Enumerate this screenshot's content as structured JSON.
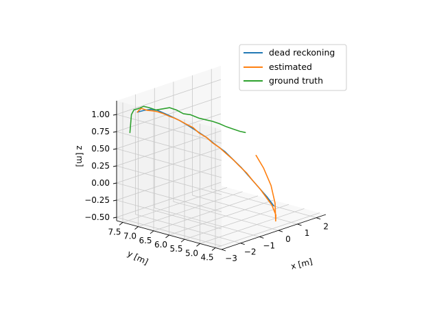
{
  "chart_data": {
    "type": "line",
    "projection": "3d",
    "title": "",
    "xlabel": "x [m]",
    "ylabel": "y [m]",
    "zlabel": "z [m]",
    "xlim": [
      -3,
      2.5
    ],
    "ylim": [
      4.3,
      7.7
    ],
    "zlim": [
      -0.55,
      1.2
    ],
    "x_ticks": [
      -3,
      -2,
      -1,
      0,
      1,
      2
    ],
    "x_tick_labels": [
      "−3",
      "−2",
      "−1",
      "0",
      "1",
      "2"
    ],
    "y_ticks": [
      7.5,
      7.0,
      6.5,
      6.0,
      5.5,
      5.0,
      4.5
    ],
    "y_tick_labels": [
      "7.5",
      "7.0",
      "6.5",
      "6.0",
      "5.5",
      "5.0",
      "4.5"
    ],
    "z_ticks": [
      1.0,
      0.75,
      0.5,
      0.25,
      0.0,
      -0.25,
      -0.5
    ],
    "z_tick_labels": [
      "1.00",
      "0.75",
      "0.50",
      "0.25",
      "0.00",
      "−0.25",
      "−0.50"
    ],
    "grid": true,
    "legend_position": "top-right",
    "series": [
      {
        "name": "dead reckoning",
        "color": "#1f77b4",
        "points": [
          [
            -2.72,
            7.2,
            1.07
          ],
          [
            -2.54,
            7.1,
            1.09
          ],
          [
            -2.35,
            7.0,
            1.1
          ],
          [
            -2.15,
            6.9,
            1.08
          ],
          [
            -1.95,
            6.8,
            1.03
          ],
          [
            -1.75,
            6.7,
            0.98
          ],
          [
            -1.55,
            6.55,
            0.92
          ],
          [
            -1.36,
            6.4,
            0.85
          ],
          [
            -1.15,
            6.25,
            0.77
          ],
          [
            -0.95,
            6.05,
            0.68
          ],
          [
            -0.75,
            5.9,
            0.58
          ],
          [
            -0.55,
            5.7,
            0.48
          ],
          [
            -0.35,
            5.55,
            0.36
          ],
          [
            -0.15,
            5.4,
            0.24
          ],
          [
            0.05,
            5.25,
            0.1
          ],
          [
            0.25,
            5.1,
            -0.04
          ],
          [
            0.45,
            4.95,
            -0.18
          ],
          [
            0.65,
            4.85,
            -0.32
          ]
        ]
      },
      {
        "name": "estimated",
        "color": "#ff7f0e",
        "points": [
          [
            -2.72,
            7.2,
            1.07
          ],
          [
            -2.6,
            7.15,
            1.12
          ],
          [
            -2.45,
            7.05,
            1.09
          ],
          [
            -2.3,
            6.95,
            1.08
          ],
          [
            -2.15,
            6.9,
            1.06
          ],
          [
            -2.0,
            6.8,
            1.03
          ],
          [
            -1.85,
            6.7,
            0.99
          ],
          [
            -1.7,
            6.65,
            0.96
          ],
          [
            -1.55,
            6.55,
            0.92
          ],
          [
            -1.4,
            6.45,
            0.87
          ],
          [
            -1.25,
            6.3,
            0.82
          ],
          [
            -1.1,
            6.2,
            0.74
          ],
          [
            -0.95,
            6.05,
            0.68
          ],
          [
            -0.8,
            5.95,
            0.6
          ],
          [
            -0.65,
            5.8,
            0.53
          ],
          [
            -0.5,
            5.7,
            0.45
          ],
          [
            -0.35,
            5.55,
            0.36
          ],
          [
            -0.2,
            5.45,
            0.27
          ],
          [
            -0.05,
            5.3,
            0.17
          ],
          [
            0.1,
            5.2,
            0.06
          ],
          [
            0.25,
            5.05,
            -0.06
          ],
          [
            0.4,
            4.95,
            -0.18
          ],
          [
            0.55,
            4.85,
            -0.3
          ],
          [
            0.68,
            4.8,
            -0.45
          ],
          [
            0.75,
            4.85,
            -0.55
          ],
          [
            0.8,
            4.9,
            -0.3
          ],
          [
            0.75,
            5.0,
            -0.05
          ],
          [
            0.6,
            5.15,
            0.2
          ],
          [
            0.45,
            5.3,
            0.38
          ]
        ]
      },
      {
        "name": "ground truth",
        "color": "#2ca02c",
        "points": [
          [
            -2.95,
            7.3,
            0.78
          ],
          [
            -2.95,
            7.25,
            1.05
          ],
          [
            -2.9,
            7.2,
            1.12
          ],
          [
            -2.75,
            7.15,
            1.13
          ],
          [
            -2.55,
            7.1,
            1.15
          ],
          [
            -2.35,
            7.05,
            1.12
          ],
          [
            -2.15,
            6.95,
            1.08
          ],
          [
            -1.95,
            6.85,
            1.09
          ],
          [
            -1.75,
            6.75,
            1.1
          ],
          [
            -1.55,
            6.65,
            1.06
          ],
          [
            -1.35,
            6.55,
            1.0
          ],
          [
            -1.15,
            6.45,
            0.98
          ],
          [
            -0.95,
            6.3,
            0.93
          ],
          [
            -0.75,
            6.2,
            0.9
          ],
          [
            -0.55,
            6.1,
            0.87
          ],
          [
            -0.35,
            6.0,
            0.83
          ],
          [
            -0.15,
            5.9,
            0.78
          ],
          [
            0.05,
            5.8,
            0.74
          ],
          [
            0.25,
            5.7,
            0.7
          ],
          [
            0.45,
            5.65,
            0.67
          ]
        ]
      }
    ]
  }
}
